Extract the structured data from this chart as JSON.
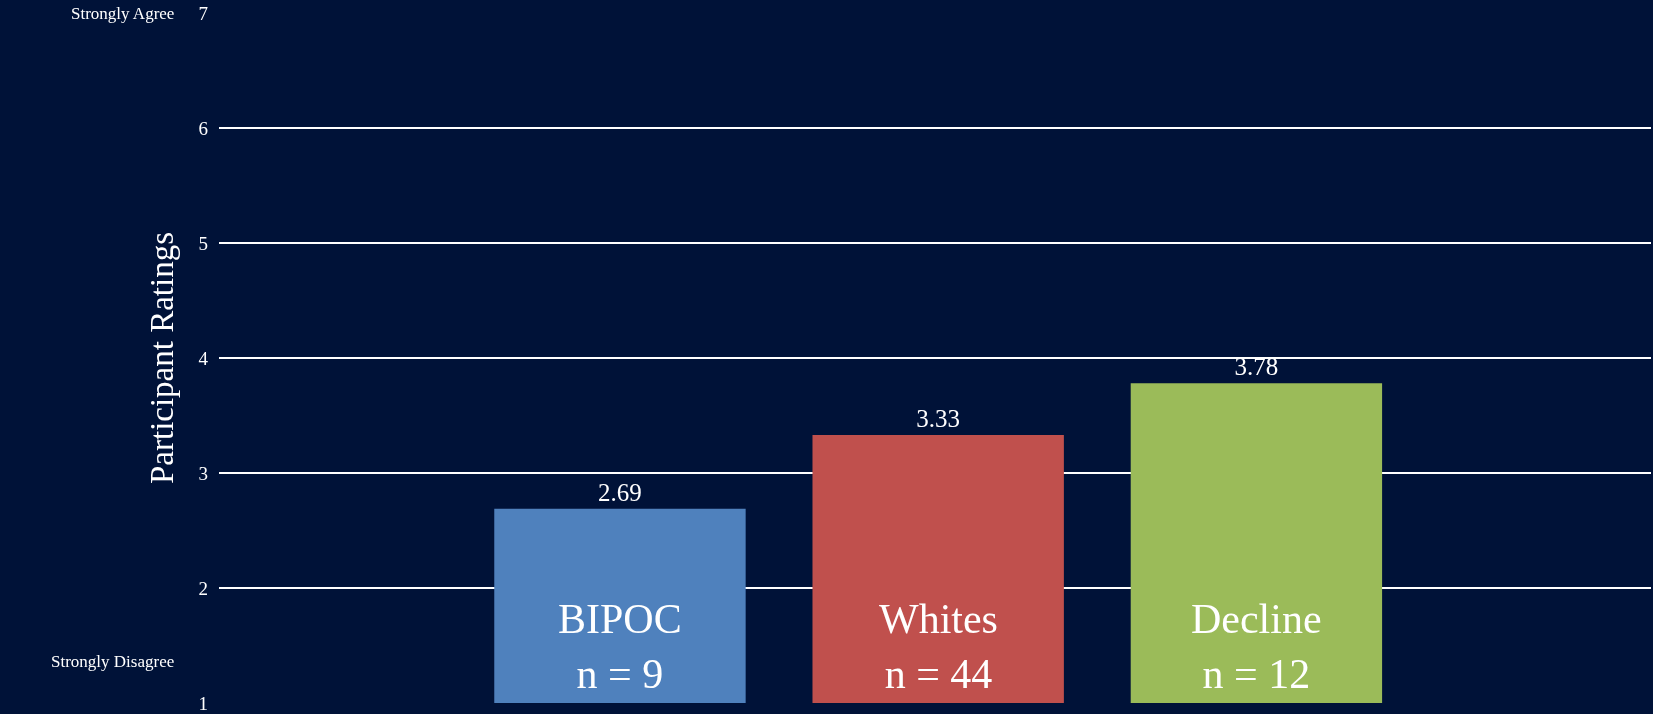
{
  "chart_data": {
    "type": "bar",
    "ylabel": "Participant Ratings",
    "categories": [
      "BIPOC\nn = 9",
      "Whites\nn = 44",
      "Decline\nn = 12"
    ],
    "values": [
      2.69,
      3.33,
      3.78
    ],
    "colors": [
      "#4f81bd",
      "#c0504d",
      "#9bbb59"
    ],
    "ylim": [
      1,
      7
    ],
    "yticks": [
      1,
      2,
      3,
      4,
      5,
      6,
      7
    ],
    "grid": "y",
    "legend": false,
    "data_labels": true,
    "annotations": [
      "Strongly Agree",
      "Strongly Disagree"
    ]
  }
}
